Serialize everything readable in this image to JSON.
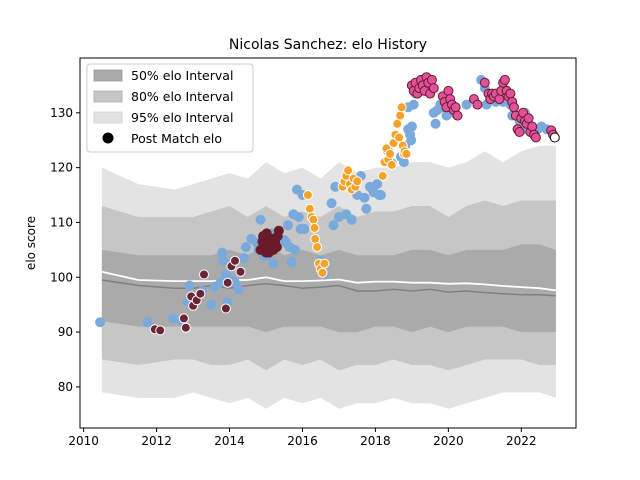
{
  "chart_data": {
    "type": "scatter",
    "title": "Nicolas Sanchez: elo History",
    "xlabel": "",
    "ylabel": "elo score",
    "xlim": [
      2009.9,
      2023.5
    ],
    "ylim": [
      72.5,
      140
    ],
    "x_ticks": [
      2010,
      2012,
      2014,
      2016,
      2018,
      2020,
      2022
    ],
    "y_ticks": [
      80,
      90,
      100,
      110,
      120,
      130
    ],
    "grid": false,
    "legend_position": "top-left",
    "legend": [
      {
        "label": "50% elo Interval",
        "color": "#aaaaaa"
      },
      {
        "label": "80% elo Interval",
        "color": "#c6c6c6"
      },
      {
        "label": "95% elo Interval",
        "color": "#e3e3e3"
      },
      {
        "label": "Post Match elo",
        "color": "#000000"
      }
    ],
    "bands": {
      "x": [
        2010.5,
        2011.5,
        2012.5,
        2013.0,
        2013.5,
        2014.0,
        2014.5,
        2015.0,
        2015.5,
        2016.0,
        2016.5,
        2017.0,
        2017.5,
        2018.0,
        2018.5,
        2019.0,
        2019.5,
        2020.0,
        2020.5,
        2021.0,
        2021.5,
        2022.0,
        2022.5,
        2022.95
      ],
      "p95_upper": [
        120,
        117,
        116,
        117,
        118,
        119,
        118,
        121,
        119,
        120,
        118,
        121,
        119,
        120,
        120,
        121,
        121,
        120,
        121,
        123,
        121,
        123,
        124,
        124
      ],
      "p95_lower": [
        79,
        78,
        78,
        79,
        78,
        77,
        78,
        76,
        78,
        77,
        78,
        76,
        77,
        77,
        78,
        77,
        77,
        76,
        77,
        78,
        79,
        79,
        79,
        78
      ],
      "p80_upper": [
        113,
        111,
        111,
        111,
        112,
        113,
        111,
        113,
        111,
        112,
        111,
        113,
        111,
        112,
        112,
        113,
        113,
        111,
        113,
        114,
        113,
        114,
        114,
        114
      ],
      "p80_lower": [
        85,
        84,
        85,
        85,
        84,
        84,
        85,
        83,
        85,
        84,
        85,
        83,
        84,
        84,
        85,
        84,
        84,
        83,
        84,
        85,
        85,
        85,
        84,
        84
      ],
      "p50_upper": [
        105,
        104,
        104,
        104,
        104,
        105,
        104,
        106,
        104,
        105,
        104,
        105,
        104,
        104,
        104,
        105,
        105,
        104,
        105,
        105,
        105,
        106,
        106,
        105
      ],
      "p50_lower": [
        92,
        91,
        91,
        91,
        91,
        91,
        91,
        90,
        91,
        91,
        91,
        90,
        90,
        91,
        91,
        90,
        91,
        90,
        91,
        91,
        91,
        90,
        90,
        90
      ],
      "median": [
        99.5,
        98.5,
        98.0,
        98.0,
        98.5,
        98.0,
        98.5,
        98.8,
        98.5,
        98.0,
        98.2,
        98.5,
        97.5,
        97.5,
        97.8,
        97.5,
        97.8,
        97.3,
        97.5,
        97.2,
        97.0,
        96.8,
        96.8,
        96.6
      ],
      "mean": [
        101.0,
        99.5,
        99.3,
        99.3,
        99.3,
        99.5,
        99.5,
        100.0,
        99.3,
        99.3,
        99.4,
        99.6,
        99.0,
        99.2,
        99.2,
        99.0,
        99.0,
        98.8,
        98.9,
        98.7,
        98.4,
        98.2,
        98.0,
        97.6
      ]
    },
    "series": [
      {
        "color": "#7aa9dc",
        "edge": "#7aa9dc",
        "points": [
          [
            2010.45,
            91.8
          ],
          [
            2011.75,
            91.8
          ],
          [
            2012.45,
            92.5
          ],
          [
            2012.7,
            92.0
          ],
          [
            2012.85,
            95.5
          ],
          [
            2012.9,
            98.5
          ],
          [
            2013.25,
            97.5
          ],
          [
            2013.5,
            95.0
          ],
          [
            2013.6,
            98.3
          ],
          [
            2013.75,
            99.0
          ],
          [
            2013.8,
            104.5
          ],
          [
            2013.82,
            103.0
          ],
          [
            2013.9,
            100.5
          ],
          [
            2013.95,
            95.5
          ],
          [
            2014.05,
            99.5
          ],
          [
            2014.15,
            99.0
          ],
          [
            2014.25,
            97.8
          ],
          [
            2014.4,
            103.5
          ],
          [
            2014.45,
            105.5
          ],
          [
            2014.6,
            107.0
          ],
          [
            2014.75,
            106.3
          ],
          [
            2014.8,
            105.0
          ],
          [
            2014.85,
            110.5
          ],
          [
            2014.95,
            103.8
          ],
          [
            2015.05,
            104.0
          ],
          [
            2015.1,
            107.5
          ],
          [
            2015.15,
            108.0
          ],
          [
            2015.2,
            102.5
          ],
          [
            2015.25,
            106.5
          ],
          [
            2015.35,
            106.5
          ],
          [
            2015.5,
            106.8
          ],
          [
            2015.55,
            106.3
          ],
          [
            2015.6,
            109.5
          ],
          [
            2015.65,
            105.5
          ],
          [
            2015.7,
            102.8
          ],
          [
            2015.75,
            111.5
          ],
          [
            2015.85,
            116.0
          ],
          [
            2015.9,
            111.0
          ],
          [
            2015.95,
            108.8
          ],
          [
            2016.0,
            115.0
          ],
          [
            2016.05,
            108.8
          ],
          [
            2015.8,
            105.0
          ],
          [
            2016.5,
            103.0
          ],
          [
            2016.6,
            100.5
          ],
          [
            2016.8,
            113.5
          ],
          [
            2016.85,
            109.5
          ],
          [
            2016.9,
            116.5
          ],
          [
            2017.0,
            111.0
          ],
          [
            2017.2,
            111.5
          ],
          [
            2017.35,
            110.5
          ],
          [
            2017.5,
            115.0
          ],
          [
            2017.6,
            118.5
          ],
          [
            2017.7,
            114.5
          ],
          [
            2017.75,
            112.5
          ],
          [
            2017.85,
            116.5
          ],
          [
            2017.95,
            115.5
          ],
          [
            2018.05,
            117.0
          ],
          [
            2018.1,
            115.0
          ],
          [
            2018.15,
            115.0
          ],
          [
            2018.35,
            123.0
          ],
          [
            2018.45,
            120.8
          ],
          [
            2018.7,
            122.0
          ],
          [
            2018.78,
            121.0
          ],
          [
            2018.82,
            124.0
          ],
          [
            2018.9,
            127.0
          ],
          [
            2018.95,
            126.0
          ],
          [
            2018.98,
            125.0
          ],
          [
            2018.9,
            131.0
          ],
          [
            2019.0,
            127.5
          ],
          [
            2019.05,
            131.5
          ],
          [
            2019.1,
            133.5
          ],
          [
            2019.15,
            135.5
          ],
          [
            2019.6,
            130.0
          ],
          [
            2019.65,
            128.0
          ],
          [
            2019.7,
            130.5
          ],
          [
            2019.78,
            131.5
          ],
          [
            2019.85,
            131.0
          ],
          [
            2019.95,
            129.5
          ],
          [
            2020.15,
            130.0
          ],
          [
            2020.5,
            131.5
          ],
          [
            2020.9,
            136.0
          ],
          [
            2021.0,
            134.5
          ],
          [
            2021.05,
            131.5
          ],
          [
            2021.3,
            132.0
          ],
          [
            2021.5,
            132.0
          ],
          [
            2021.7,
            131.5
          ],
          [
            2021.75,
            129.5
          ],
          [
            2021.95,
            128.5
          ],
          [
            2022.05,
            127.0
          ],
          [
            2022.1,
            130.0
          ],
          [
            2022.2,
            127.5
          ],
          [
            2022.3,
            127.0
          ],
          [
            2022.45,
            127.0
          ],
          [
            2022.55,
            127.5
          ],
          [
            2022.7,
            127.0
          ]
        ]
      },
      {
        "color": "#6b2436",
        "edge": "#ffffff",
        "points": [
          [
            2011.95,
            90.5
          ],
          [
            2012.1,
            90.3
          ],
          [
            2012.75,
            92.5
          ],
          [
            2012.8,
            90.8
          ],
          [
            2012.95,
            96.5
          ],
          [
            2013.0,
            94.8
          ],
          [
            2013.1,
            95.8
          ],
          [
            2013.2,
            97.0
          ],
          [
            2013.3,
            100.5
          ],
          [
            2013.9,
            94.3
          ],
          [
            2013.95,
            99.0
          ],
          [
            2014.05,
            102.0
          ],
          [
            2014.15,
            103.0
          ],
          [
            2014.3,
            101.0
          ]
        ]
      },
      {
        "color": "#6b1a2a",
        "edge": "#6b1a2a",
        "points": [
          [
            2014.85,
            105.0
          ],
          [
            2014.9,
            106.5
          ],
          [
            2014.92,
            107.5
          ],
          [
            2014.95,
            105.5
          ],
          [
            2015.0,
            104.5
          ],
          [
            2015.02,
            108.0
          ],
          [
            2015.05,
            107.0
          ],
          [
            2015.08,
            104.5
          ],
          [
            2015.1,
            106.0
          ],
          [
            2015.12,
            105.5
          ],
          [
            2015.15,
            107.0
          ],
          [
            2015.18,
            106.0
          ],
          [
            2015.2,
            105.0
          ],
          [
            2015.25,
            106.5
          ],
          [
            2015.3,
            105.5
          ],
          [
            2015.32,
            107.5
          ],
          [
            2015.35,
            108.5
          ]
        ]
      },
      {
        "color": "#f7a128",
        "edge": "#ffffff",
        "points": [
          [
            2016.15,
            115.0
          ],
          [
            2016.2,
            112.5
          ],
          [
            2016.25,
            111.0
          ],
          [
            2016.3,
            110.5
          ],
          [
            2016.33,
            109.0
          ],
          [
            2016.35,
            107.0
          ],
          [
            2016.4,
            105.5
          ],
          [
            2016.45,
            102.5
          ],
          [
            2016.5,
            101.5
          ],
          [
            2016.55,
            100.8
          ],
          [
            2016.6,
            102.5
          ],
          [
            2017.1,
            116.5
          ],
          [
            2017.15,
            117.5
          ],
          [
            2017.2,
            118.5
          ],
          [
            2017.25,
            119.5
          ],
          [
            2017.3,
            117.0
          ],
          [
            2017.35,
            116.0
          ],
          [
            2017.4,
            118.0
          ],
          [
            2017.45,
            116.5
          ],
          [
            2017.5,
            117.5
          ],
          [
            2018.2,
            118.5
          ],
          [
            2018.25,
            121.0
          ],
          [
            2018.3,
            123.5
          ],
          [
            2018.35,
            121.5
          ],
          [
            2018.4,
            122.5
          ],
          [
            2018.45,
            120.5
          ],
          [
            2018.5,
            124.5
          ],
          [
            2018.55,
            126.0
          ],
          [
            2018.6,
            128.0
          ],
          [
            2018.65,
            125.5
          ],
          [
            2018.68,
            129.5
          ],
          [
            2018.72,
            131.0
          ],
          [
            2018.75,
            124.0
          ],
          [
            2018.78,
            122.5
          ],
          [
            2018.8,
            123.0
          ],
          [
            2018.85,
            122.5
          ]
        ]
      },
      {
        "color": "#e0529c",
        "edge": "#6b1a2a",
        "points": [
          [
            2019.0,
            135.0
          ],
          [
            2019.05,
            134.0
          ],
          [
            2019.1,
            135.5
          ],
          [
            2019.15,
            133.5
          ],
          [
            2019.2,
            134.5
          ],
          [
            2019.25,
            136.0
          ],
          [
            2019.3,
            135.0
          ],
          [
            2019.35,
            134.0
          ],
          [
            2019.4,
            136.5
          ],
          [
            2019.45,
            135.5
          ],
          [
            2019.5,
            133.5
          ],
          [
            2019.55,
            136.0
          ],
          [
            2019.6,
            134.5
          ],
          [
            2019.85,
            133.0
          ],
          [
            2019.9,
            132.0
          ],
          [
            2019.95,
            131.0
          ],
          [
            2020.0,
            134.0
          ],
          [
            2020.05,
            132.5
          ],
          [
            2020.1,
            131.5
          ],
          [
            2020.15,
            130.5
          ],
          [
            2020.2,
            131.0
          ],
          [
            2020.25,
            129.5
          ],
          [
            2020.7,
            132.5
          ],
          [
            2020.8,
            131.5
          ],
          [
            2021.0,
            135.5
          ],
          [
            2021.1,
            133.5
          ],
          [
            2021.15,
            132.5
          ],
          [
            2021.2,
            133.5
          ],
          [
            2021.25,
            133.0
          ],
          [
            2021.3,
            133.5
          ],
          [
            2021.4,
            132.5
          ],
          [
            2021.45,
            134.0
          ],
          [
            2021.5,
            135.5
          ],
          [
            2021.55,
            136.0
          ],
          [
            2021.6,
            134.0
          ],
          [
            2021.65,
            133.0
          ],
          [
            2021.7,
            133.5
          ],
          [
            2021.75,
            132.0
          ],
          [
            2021.8,
            131.0
          ],
          [
            2021.85,
            129.5
          ],
          [
            2021.9,
            127.0
          ],
          [
            2021.95,
            126.5
          ],
          [
            2022.0,
            129.0
          ],
          [
            2022.05,
            130.0
          ],
          [
            2022.1,
            128.5
          ],
          [
            2022.15,
            128.0
          ],
          [
            2022.2,
            129.0
          ],
          [
            2022.25,
            126.5
          ],
          [
            2022.3,
            127.5
          ],
          [
            2022.35,
            126.0
          ],
          [
            2022.4,
            125.5
          ],
          [
            2022.82,
            126.8
          ],
          [
            2022.87,
            126.0
          ]
        ]
      },
      {
        "color": "#ffffff",
        "edge": "#000000",
        "points": [
          [
            2022.92,
            125.5
          ]
        ]
      }
    ]
  }
}
